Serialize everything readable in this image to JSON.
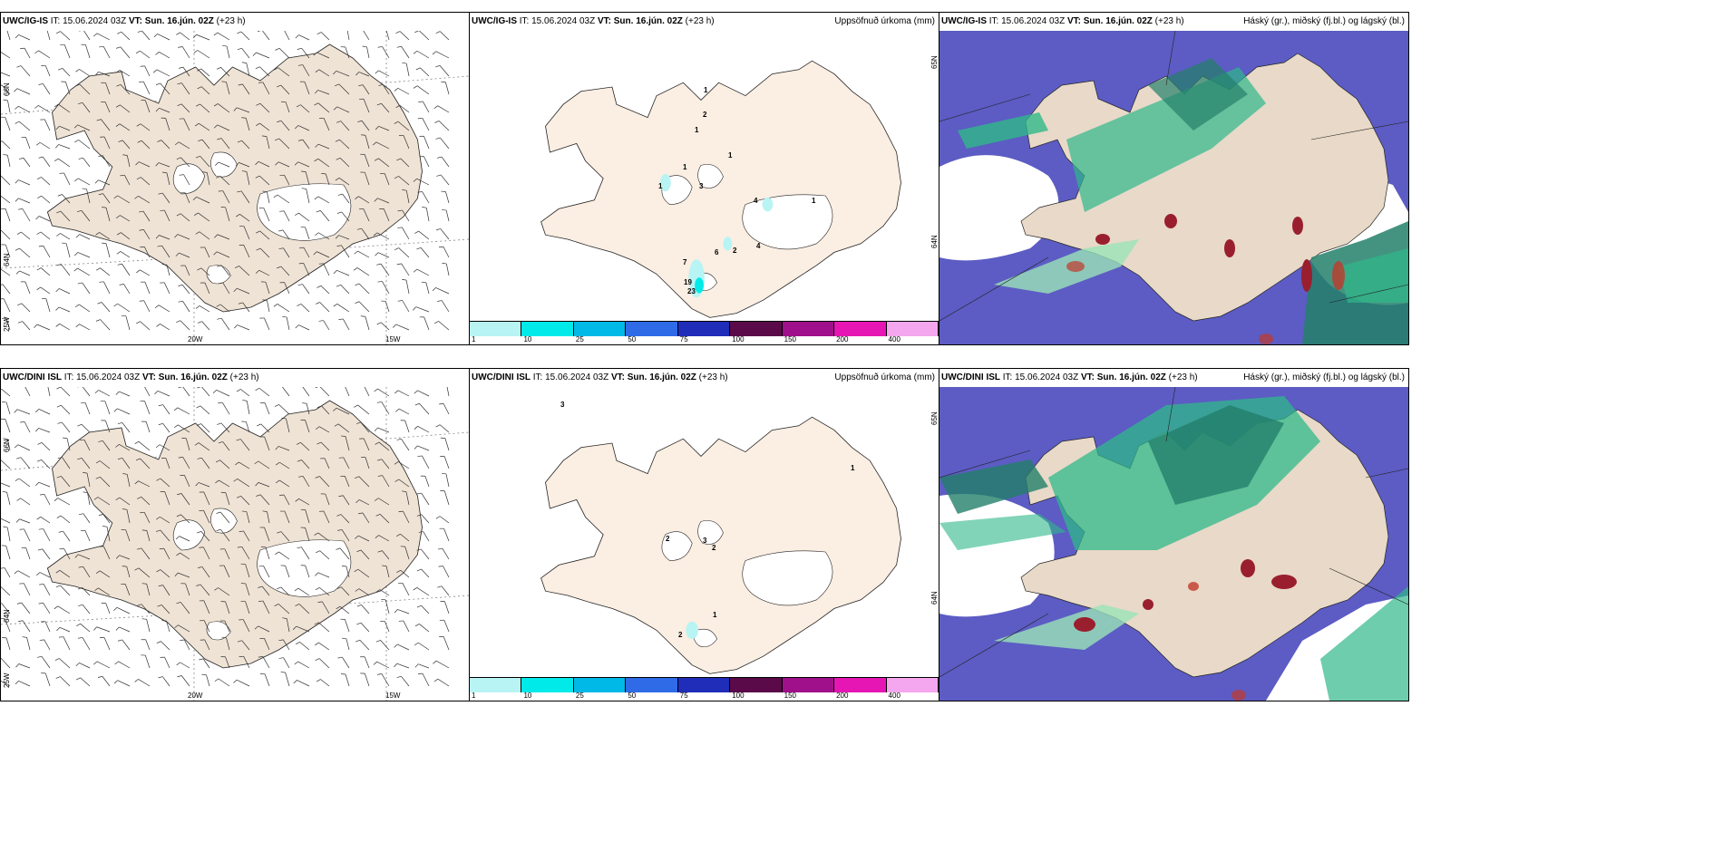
{
  "rows": [
    {
      "model": "UWC/IG-IS",
      "it_label": "IT:",
      "it_value": "15.06.2024 03Z",
      "vt_label": "VT:",
      "vt_value": "Sun. 16.jún. 02Z",
      "lead": "(+23 h)"
    },
    {
      "model": "UWC/DINI ISL",
      "it_label": "IT:",
      "it_value": "15.06.2024 03Z",
      "vt_label": "VT:",
      "vt_value": "Sun. 16.jún. 02Z",
      "lead": "(+23 h)"
    }
  ],
  "precip_title": "Uppsöfnuð úrkoma (mm)",
  "cloud_title": "Háský (gr.), miðský (fj.bl.) og lágský (bl.)",
  "axis_labels": {
    "lon_20w": "20W",
    "lon_15w": "15W",
    "lat_66n": "66N",
    "lat_64n": "64N",
    "lon_25w": "25W",
    "lat_65n": "65N",
    "lat_64n_r": "64N"
  },
  "colorbar": {
    "ticks": [
      "1",
      "10",
      "25",
      "50",
      "75",
      "100",
      "150",
      "200",
      "400"
    ],
    "colors": [
      "#b8f4f4",
      "#00eaea",
      "#00b9e6",
      "#2f6be6",
      "#1f2db8",
      "#5a0a48",
      "#a0108a",
      "#e616b4",
      "#f4a6ee"
    ]
  },
  "precip_numbers_top": [
    "1",
    "2",
    "1",
    "1",
    "1",
    "3",
    "1",
    "4",
    "1",
    "6",
    "2",
    "4",
    "7",
    "19",
    "23"
  ],
  "precip_numbers_bottom": [
    "3",
    "1",
    "2",
    "3",
    "2",
    "1",
    "2"
  ],
  "colors": {
    "land": "#efe3d5",
    "land_light": "#fbeee2",
    "high_cloud": "#5c5cc4",
    "mid_cloud": "#2fb88a",
    "low_cloud": "#9a1f2e"
  }
}
